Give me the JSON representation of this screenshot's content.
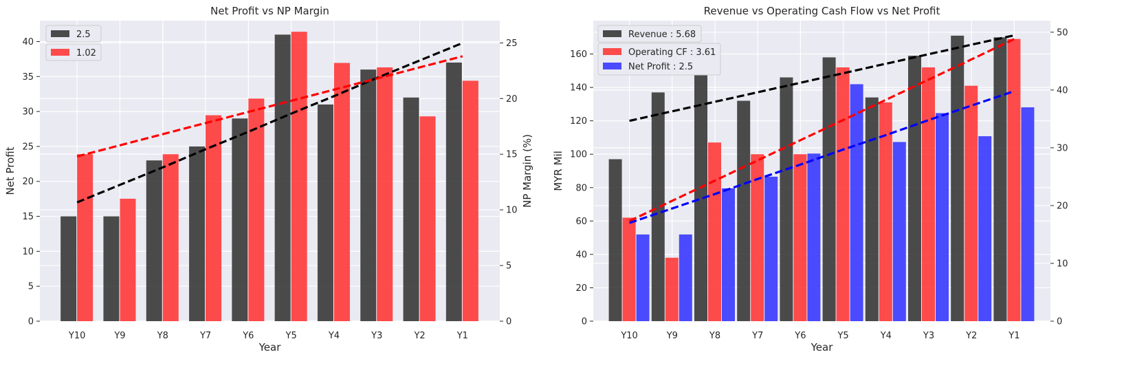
{
  "chart_data": [
    {
      "type": "bar",
      "title": "Net Profit vs NP Margin",
      "xlabel": "Year",
      "ylabel": "Net Profit",
      "ylabel_right": "NP Margin (%)",
      "categories": [
        "Y10",
        "Y9",
        "Y8",
        "Y7",
        "Y6",
        "Y5",
        "Y4",
        "Y3",
        "Y2",
        "Y1"
      ],
      "ylim": [
        0,
        43
      ],
      "ylim_right": [
        0,
        27
      ],
      "yticks": [
        0,
        5,
        10,
        15,
        20,
        25,
        30,
        35,
        40
      ],
      "yticks_right": [
        0,
        5,
        10,
        15,
        20,
        25
      ],
      "grid": true,
      "legend_position": "top-left",
      "series": [
        {
          "name": "2.5",
          "axis": "left",
          "color": "#333333",
          "values": [
            15,
            15,
            23,
            25,
            29,
            41,
            31,
            36,
            32,
            37
          ]
        },
        {
          "name": "1.02",
          "axis": "right",
          "color": "#ff3333",
          "values": [
            15,
            11,
            15,
            18.5,
            20,
            26,
            23.2,
            22.8,
            18.4,
            21.6
          ]
        }
      ],
      "trendlines": [
        {
          "axis": "left",
          "color": "#000000",
          "values": [
            17,
            19.5,
            22,
            24.6,
            27.1,
            29.7,
            32.2,
            34.8,
            37.3,
            39.8
          ]
        },
        {
          "axis": "right",
          "color": "#ff0000",
          "values": [
            14.8,
            15.8,
            16.8,
            17.8,
            18.8,
            19.8,
            20.8,
            21.8,
            22.8,
            23.8
          ]
        }
      ]
    },
    {
      "type": "bar",
      "title": "Revenue vs Operating Cash Flow vs Net Profit",
      "xlabel": "Year",
      "ylabel": "MYR Mil",
      "categories": [
        "Y10",
        "Y9",
        "Y8",
        "Y7",
        "Y6",
        "Y5",
        "Y4",
        "Y3",
        "Y2",
        "Y1"
      ],
      "ylim": [
        0,
        180
      ],
      "ylim_right": [
        0,
        52
      ],
      "yticks": [
        0,
        20,
        40,
        60,
        80,
        100,
        120,
        140,
        160
      ],
      "yticks_right": [
        0,
        10,
        20,
        30,
        40,
        50
      ],
      "grid": true,
      "legend_position": "top-left",
      "series": [
        {
          "name": "Revenue : 5.68",
          "axis": "left",
          "color": "#333333",
          "values": [
            97,
            137,
            154,
            132,
            146,
            158,
            134,
            159,
            171,
            170
          ]
        },
        {
          "name": "Operating CF : 3.61",
          "axis": "left",
          "color": "#ff3333",
          "values": [
            62,
            38,
            107,
            100,
            100,
            152,
            131,
            152,
            141,
            169
          ]
        },
        {
          "name": "Net Profit : 2.5",
          "axis": "right",
          "color": "#3333ff",
          "values": [
            15,
            15,
            23,
            25,
            29,
            41,
            31,
            36,
            32,
            37
          ]
        }
      ],
      "trendlines": [
        {
          "axis": "left",
          "color": "#000000",
          "values": [
            120,
            125.7,
            131.4,
            137.1,
            142.8,
            148.5,
            154.2,
            159.9,
            165.6,
            171.2
          ]
        },
        {
          "axis": "left",
          "color": "#ff0000",
          "values": [
            60,
            72.1,
            84.2,
            96.3,
            108.4,
            120.5,
            132.6,
            144.7,
            156.8,
            169
          ]
        },
        {
          "axis": "right",
          "color": "#0000ff",
          "values": [
            17,
            19.5,
            22,
            24.6,
            27.1,
            29.7,
            32.2,
            34.8,
            37.3,
            39.8
          ]
        }
      ]
    }
  ]
}
